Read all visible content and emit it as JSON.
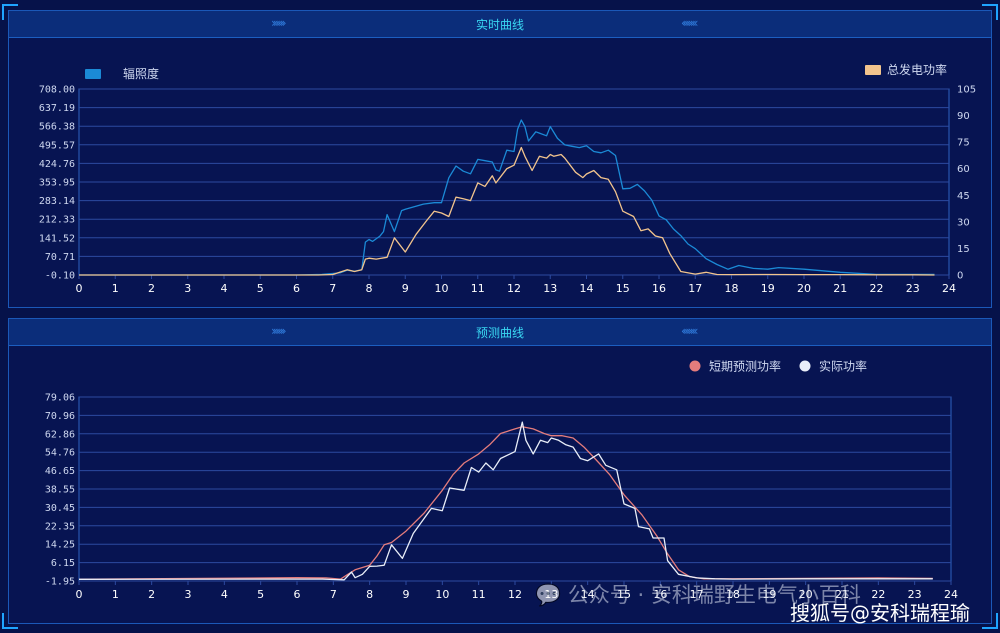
{
  "panels": [
    {
      "title": "实时曲线",
      "chev_left": "›››››››",
      "chev_right": "‹‹‹‹‹‹‹‹"
    },
    {
      "title": "预测曲线",
      "chev_left": "›››››››",
      "chev_right": "‹‹‹‹‹‹‹‹"
    }
  ],
  "watermark": {
    "left": "公众号 · 安科瑞野生电气小百科",
    "right": "搜狐号@安科瑞程瑜"
  },
  "colors": {
    "irradiance": "#1b8ad6",
    "power": "#f2c48d",
    "forecast": "#e47c7c",
    "actual": "#e9eef8",
    "grid": "#2c4aa0",
    "tick": "#cfd8f0"
  },
  "chart_data": [
    {
      "type": "line",
      "x_ticks": [
        "0",
        "1",
        "2",
        "3",
        "4",
        "5",
        "6",
        "7",
        "8",
        "9",
        "10",
        "11",
        "12",
        "13",
        "14",
        "15",
        "16",
        "17",
        "18",
        "19",
        "20",
        "21",
        "22",
        "23",
        "24"
      ],
      "xlim": [
        0,
        24
      ],
      "y_left_ticks": [
        "-0.10",
        "70.71",
        "141.52",
        "212.33",
        "283.14",
        "353.95",
        "424.76",
        "495.57",
        "566.38",
        "637.19",
        "708.00"
      ],
      "ylim_left": [
        -0.1,
        708
      ],
      "y_right_ticks": [
        "0",
        "15",
        "30",
        "45",
        "60",
        "75",
        "90",
        "105"
      ],
      "ylim_right": [
        0,
        105
      ],
      "legend": [
        {
          "label": "辐照度",
          "color": "#1b8ad6",
          "position": "top-left"
        },
        {
          "label": "总发电功率",
          "color": "#f2c48d",
          "position": "top-right"
        }
      ],
      "series": [
        {
          "name": "辐照度",
          "axis": "left",
          "color": "#1b8ad6",
          "points": [
            [
              0,
              0
            ],
            [
              6,
              0
            ],
            [
              6.7,
              2
            ],
            [
              7.2,
              8
            ],
            [
              7.4,
              18
            ],
            [
              7.6,
              14
            ],
            [
              7.8,
              20
            ],
            [
              7.9,
              125
            ],
            [
              8.0,
              135
            ],
            [
              8.1,
              128
            ],
            [
              8.3,
              148
            ],
            [
              8.4,
              165
            ],
            [
              8.5,
              230
            ],
            [
              8.7,
              165
            ],
            [
              8.9,
              245
            ],
            [
              9.0,
              250
            ],
            [
              9.5,
              270
            ],
            [
              9.8,
              275
            ],
            [
              10.0,
              275
            ],
            [
              10.2,
              370
            ],
            [
              10.4,
              415
            ],
            [
              10.6,
              395
            ],
            [
              10.8,
              385
            ],
            [
              11.0,
              440
            ],
            [
              11.2,
              435
            ],
            [
              11.4,
              430
            ],
            [
              11.5,
              400
            ],
            [
              11.6,
              395
            ],
            [
              11.8,
              475
            ],
            [
              12.0,
              470
            ],
            [
              12.1,
              555
            ],
            [
              12.2,
              590
            ],
            [
              12.3,
              565
            ],
            [
              12.4,
              510
            ],
            [
              12.6,
              545
            ],
            [
              12.7,
              540
            ],
            [
              12.9,
              530
            ],
            [
              13.0,
              565
            ],
            [
              13.2,
              520
            ],
            [
              13.4,
              495
            ],
            [
              13.6,
              490
            ],
            [
              13.8,
              485
            ],
            [
              14.0,
              492
            ],
            [
              14.2,
              470
            ],
            [
              14.4,
              465
            ],
            [
              14.6,
              475
            ],
            [
              14.8,
              455
            ],
            [
              15.0,
              328
            ],
            [
              15.2,
              330
            ],
            [
              15.4,
              345
            ],
            [
              15.6,
              320
            ],
            [
              15.8,
              285
            ],
            [
              16.0,
              225
            ],
            [
              16.2,
              210
            ],
            [
              16.4,
              175
            ],
            [
              16.6,
              150
            ],
            [
              16.8,
              118
            ],
            [
              17.0,
              100
            ],
            [
              17.3,
              62
            ],
            [
              17.6,
              40
            ],
            [
              17.9,
              22
            ],
            [
              18.2,
              36
            ],
            [
              18.6,
              25
            ],
            [
              19.0,
              22
            ],
            [
              19.3,
              28
            ],
            [
              20.0,
              22
            ],
            [
              21.0,
              10
            ],
            [
              22.0,
              2
            ],
            [
              23.0,
              2
            ],
            [
              23.6,
              2
            ]
          ]
        },
        {
          "name": "总发电功率",
          "axis": "right",
          "color": "#f2c48d",
          "points": [
            [
              0,
              0
            ],
            [
              6.6,
              0
            ],
            [
              7.0,
              0.3
            ],
            [
              7.4,
              3
            ],
            [
              7.6,
              2
            ],
            [
              7.8,
              3
            ],
            [
              7.9,
              9
            ],
            [
              8.0,
              9.5
            ],
            [
              8.2,
              9
            ],
            [
              8.5,
              10
            ],
            [
              8.7,
              21
            ],
            [
              9.0,
              13
            ],
            [
              9.3,
              23
            ],
            [
              9.6,
              31
            ],
            [
              9.8,
              36
            ],
            [
              10.0,
              35
            ],
            [
              10.2,
              33
            ],
            [
              10.4,
              44
            ],
            [
              10.6,
              43
            ],
            [
              10.8,
              42
            ],
            [
              11.0,
              52
            ],
            [
              11.2,
              50
            ],
            [
              11.4,
              56
            ],
            [
              11.5,
              52
            ],
            [
              11.8,
              60
            ],
            [
              12.0,
              62
            ],
            [
              12.2,
              72
            ],
            [
              12.3,
              67
            ],
            [
              12.5,
              59
            ],
            [
              12.7,
              67
            ],
            [
              12.9,
              66
            ],
            [
              13.0,
              68
            ],
            [
              13.1,
              67
            ],
            [
              13.3,
              68
            ],
            [
              13.4,
              66
            ],
            [
              13.7,
              58
            ],
            [
              13.9,
              55
            ],
            [
              14.0,
              57
            ],
            [
              14.2,
              59
            ],
            [
              14.4,
              55
            ],
            [
              14.6,
              54
            ],
            [
              14.8,
              47
            ],
            [
              15.0,
              36
            ],
            [
              15.3,
              33
            ],
            [
              15.5,
              25
            ],
            [
              15.7,
              26
            ],
            [
              15.9,
              22
            ],
            [
              16.1,
              21
            ],
            [
              16.3,
              12
            ],
            [
              16.6,
              2
            ],
            [
              17.0,
              0.5
            ],
            [
              17.3,
              1.5
            ],
            [
              17.6,
              0.3
            ],
            [
              18.0,
              0.2
            ],
            [
              19.0,
              0.3
            ],
            [
              20.0,
              0.2
            ],
            [
              21.0,
              0.2
            ],
            [
              22.0,
              0.1
            ],
            [
              23.0,
              0.1
            ],
            [
              23.6,
              0
            ]
          ]
        }
      ]
    },
    {
      "type": "line",
      "x_ticks": [
        "0",
        "1",
        "2",
        "3",
        "4",
        "5",
        "6",
        "7",
        "8",
        "9",
        "10",
        "11",
        "12",
        "13",
        "14",
        "15",
        "16",
        "17",
        "18",
        "19",
        "20",
        "21",
        "22",
        "23",
        "24"
      ],
      "xlim": [
        0,
        24
      ],
      "y_left_ticks": [
        "-1.95",
        "6.15",
        "14.25",
        "22.35",
        "30.45",
        "38.55",
        "46.65",
        "54.76",
        "62.86",
        "70.96",
        "79.06"
      ],
      "ylim_left": [
        -1.95,
        79.06
      ],
      "legend": [
        {
          "label": "短期预测功率",
          "color": "#e47c7c",
          "position": "top-right"
        },
        {
          "label": "实际功率",
          "color": "#e9eef8",
          "position": "top-right"
        }
      ],
      "series": [
        {
          "name": "短期预测功率",
          "color": "#e47c7c",
          "points": [
            [
              0,
              -1.2
            ],
            [
              6,
              -0.5
            ],
            [
              6.8,
              -0.6
            ],
            [
              7.2,
              -1.1
            ],
            [
              7.4,
              1
            ],
            [
              7.6,
              3
            ],
            [
              7.8,
              4
            ],
            [
              8.0,
              5
            ],
            [
              8.2,
              9
            ],
            [
              8.4,
              14
            ],
            [
              8.6,
              15
            ],
            [
              9.0,
              20
            ],
            [
              9.5,
              28
            ],
            [
              10.0,
              38
            ],
            [
              10.3,
              45
            ],
            [
              10.6,
              50
            ],
            [
              11.0,
              54
            ],
            [
              11.3,
              58
            ],
            [
              11.6,
              63
            ],
            [
              11.8,
              64
            ],
            [
              12.0,
              65
            ],
            [
              12.2,
              66
            ],
            [
              12.5,
              65
            ],
            [
              12.8,
              63
            ],
            [
              13.0,
              62
            ],
            [
              13.3,
              62
            ],
            [
              13.6,
              61
            ],
            [
              13.9,
              57
            ],
            [
              14.2,
              52
            ],
            [
              14.6,
              45
            ],
            [
              15.0,
              36
            ],
            [
              15.5,
              27
            ],
            [
              15.9,
              18
            ],
            [
              16.2,
              10
            ],
            [
              16.5,
              3
            ],
            [
              16.8,
              0
            ],
            [
              17.2,
              -1
            ],
            [
              18.0,
              -1
            ],
            [
              20.0,
              -0.8
            ],
            [
              22.0,
              -0.6
            ],
            [
              23.5,
              -0.8
            ]
          ]
        },
        {
          "name": "实际功率",
          "color": "#e9eef8",
          "points": [
            [
              0,
              -1.2
            ],
            [
              6.7,
              -1.1
            ],
            [
              7.0,
              -1.3
            ],
            [
              7.3,
              -1.4
            ],
            [
              7.5,
              2
            ],
            [
              7.6,
              -0.5
            ],
            [
              7.8,
              1
            ],
            [
              8.0,
              4.5
            ],
            [
              8.2,
              4.6
            ],
            [
              8.4,
              5
            ],
            [
              8.6,
              14
            ],
            [
              8.9,
              8
            ],
            [
              9.2,
              19
            ],
            [
              9.7,
              30
            ],
            [
              10.0,
              29
            ],
            [
              10.2,
              39
            ],
            [
              10.6,
              38
            ],
            [
              10.8,
              48
            ],
            [
              11.0,
              46
            ],
            [
              11.2,
              50
            ],
            [
              11.4,
              47
            ],
            [
              11.6,
              52
            ],
            [
              12.0,
              55
            ],
            [
              12.2,
              68
            ],
            [
              12.3,
              60
            ],
            [
              12.5,
              54
            ],
            [
              12.7,
              60
            ],
            [
              12.9,
              59
            ],
            [
              13.0,
              61
            ],
            [
              13.2,
              60
            ],
            [
              13.4,
              58
            ],
            [
              13.6,
              57
            ],
            [
              13.8,
              52
            ],
            [
              14.0,
              51
            ],
            [
              14.3,
              54
            ],
            [
              14.5,
              49
            ],
            [
              14.8,
              47
            ],
            [
              15.0,
              32
            ],
            [
              15.3,
              30
            ],
            [
              15.4,
              22
            ],
            [
              15.7,
              21
            ],
            [
              15.8,
              17
            ],
            [
              16.1,
              17
            ],
            [
              16.2,
              7
            ],
            [
              16.5,
              1
            ],
            [
              17.0,
              -0.6
            ],
            [
              17.5,
              -1
            ],
            [
              18.0,
              -1.1
            ],
            [
              20.0,
              -1
            ],
            [
              22.0,
              -1
            ],
            [
              23.5,
              -1
            ]
          ]
        }
      ]
    }
  ]
}
